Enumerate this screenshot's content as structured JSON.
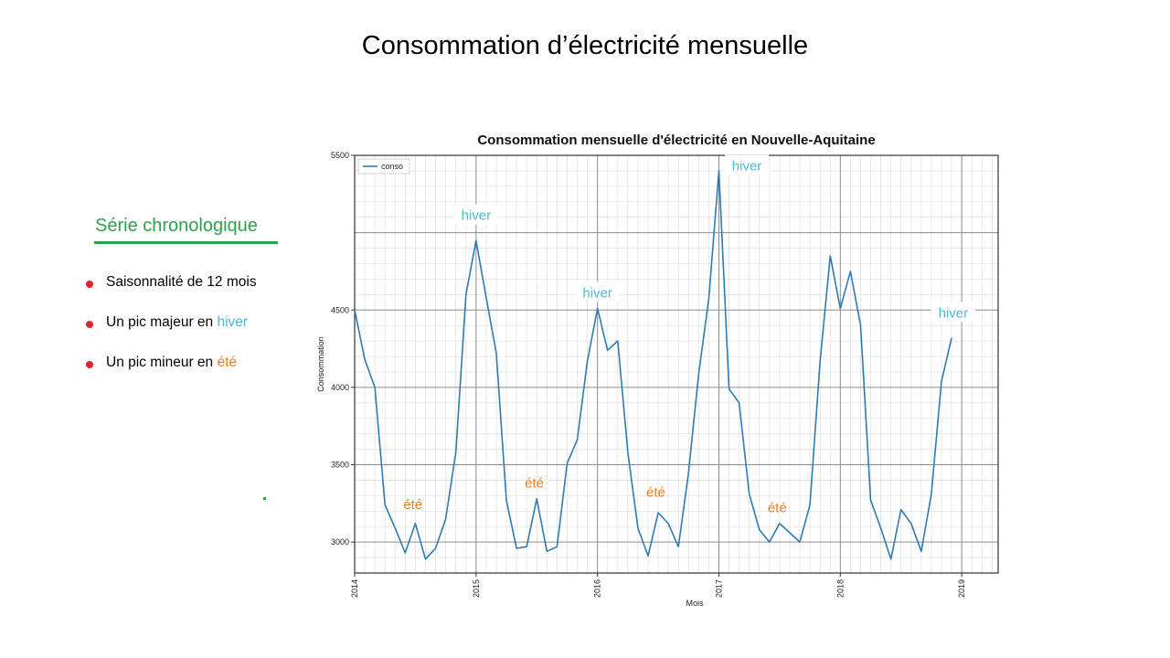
{
  "slide": {
    "title": "Consommation d’électricité mensuelle"
  },
  "sidebar": {
    "heading": "Série chronologique",
    "bullets": [
      {
        "text": "Saisonnalité de 12 mois",
        "highlight": ""
      },
      {
        "text": "Un pic majeur en ",
        "highlight": "hiver",
        "highlight_color": "#4bb8d8"
      },
      {
        "text": "Un pic mineur en ",
        "highlight": "été",
        "highlight_color": "#ef7d22"
      }
    ]
  },
  "chart_data": {
    "type": "line",
    "title": "Consommation mensuelle d'électricité en Nouvelle-Aquitaine",
    "xlabel": "Mois",
    "ylabel": "Consommation",
    "xlim": [
      2014,
      2019.3
    ],
    "ylim": [
      2800,
      5500
    ],
    "x_ticks": [
      "2014",
      "2015",
      "2016",
      "2017",
      "2018",
      "2019"
    ],
    "y_ticks": [
      "3000",
      "3500",
      "4000",
      "4500",
      "5500"
    ],
    "grid": true,
    "legend": {
      "position": "top-left",
      "entries": [
        "conso"
      ]
    },
    "series": [
      {
        "name": "conso",
        "color": "#2e7bb4",
        "start": "2014-01",
        "values": [
          4500,
          4180,
          4000,
          3240,
          3090,
          2930,
          3120,
          2890,
          2960,
          3150,
          3580,
          4600,
          4950,
          4580,
          4220,
          3270,
          2960,
          2970,
          3280,
          2940,
          2970,
          3510,
          3660,
          4170,
          4510,
          4240,
          4300,
          3580,
          3090,
          2910,
          3190,
          3120,
          2970,
          3450,
          4090,
          4570,
          5400,
          3990,
          3900,
          3310,
          3080,
          3000,
          3120,
          3060,
          3000,
          3240,
          4170,
          4850,
          4510,
          4750,
          4400,
          3270,
          3090,
          2890,
          3210,
          3120,
          2940,
          3310,
          4040,
          4320
        ]
      }
    ],
    "annotations": [
      {
        "text": "hiver",
        "x": 2015.0,
        "y": 5100,
        "color": "#4bb8d8"
      },
      {
        "text": "hiver",
        "x": 2016.0,
        "y": 4600,
        "color": "#4bb8d8"
      },
      {
        "text": "hiver",
        "x": 2017.23,
        "y": 5420,
        "color": "#4bb8d8"
      },
      {
        "text": "hiver",
        "x": 2018.93,
        "y": 4470,
        "color": "#4bb8d8"
      },
      {
        "text": "été",
        "x": 2014.48,
        "y": 3230,
        "color": "#ef7d22"
      },
      {
        "text": "été",
        "x": 2015.48,
        "y": 3370,
        "color": "#ef7d22"
      },
      {
        "text": "été",
        "x": 2016.48,
        "y": 3310,
        "color": "#ef7d22"
      },
      {
        "text": "été",
        "x": 2017.48,
        "y": 3210,
        "color": "#ef7d22"
      }
    ]
  }
}
